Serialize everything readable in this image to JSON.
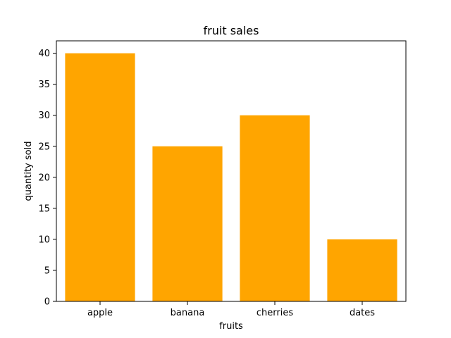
{
  "chart_data": {
    "type": "bar",
    "title": "fruit sales",
    "xlabel": "fruits",
    "ylabel": "quantity sold",
    "categories": [
      "apple",
      "banana",
      "cherries",
      "dates"
    ],
    "values": [
      40,
      25,
      30,
      10
    ],
    "ylim": [
      0,
      42
    ],
    "yticks": [
      0,
      5,
      10,
      15,
      20,
      25,
      30,
      35,
      40
    ],
    "grid": false,
    "bar_color": "#ffa500",
    "axis_color": "#000000"
  }
}
